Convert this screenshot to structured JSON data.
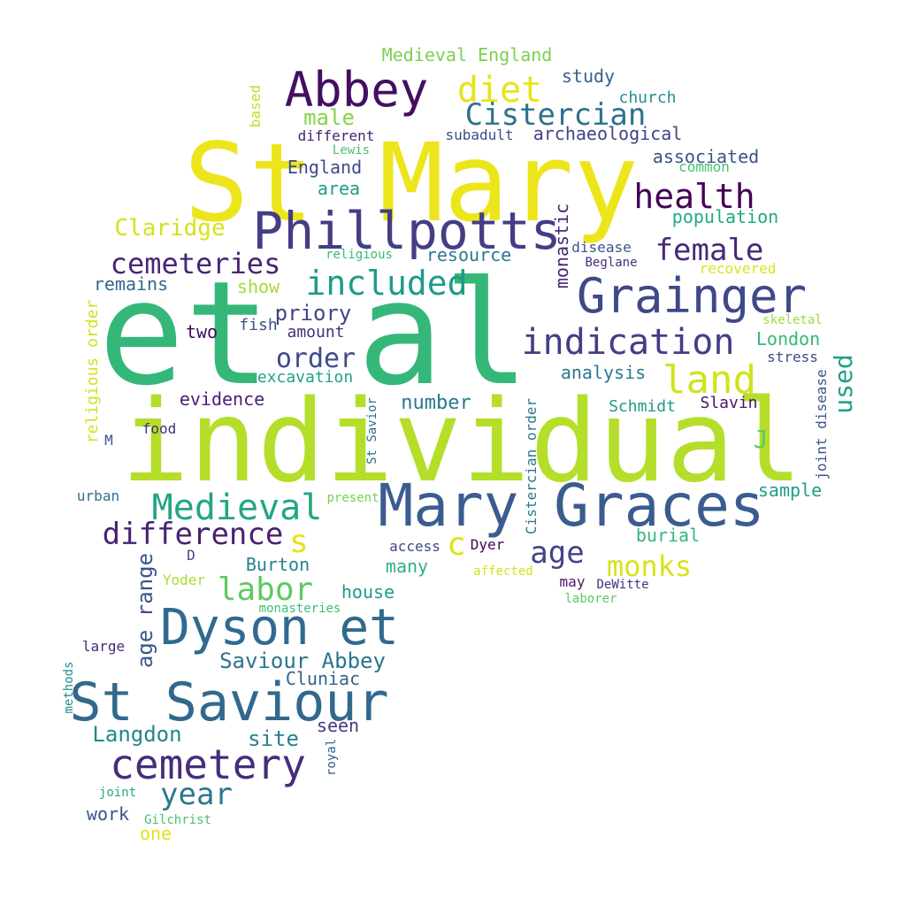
{
  "words": [
    {
      "text": "individual",
      "color": "#b5de2b"
    },
    {
      "text": "et al",
      "color": "#35b779"
    },
    {
      "text": "St Mary",
      "color": "#ece51b"
    },
    {
      "text": "Mary Graces",
      "color": "#3b5c8f"
    },
    {
      "text": "Phillpotts",
      "color": "#433e85"
    },
    {
      "text": "Dyson et",
      "color": "#306a8e"
    },
    {
      "text": "St Saviour",
      "color": "#31688e"
    },
    {
      "text": "Grainger",
      "color": "#3e4989"
    },
    {
      "text": "Abbey",
      "color": "#440f62"
    },
    {
      "text": "cemetery",
      "color": "#472d7b"
    },
    {
      "text": "indication",
      "color": "#433e85"
    },
    {
      "text": "Medieval",
      "color": "#21a685"
    },
    {
      "text": "included",
      "color": "#1f9a8a"
    },
    {
      "text": "diet",
      "color": "#e7e419"
    },
    {
      "text": "health",
      "color": "#440154"
    },
    {
      "text": "land",
      "color": "#d2e21b"
    },
    {
      "text": "difference",
      "color": "#482173"
    },
    {
      "text": "cemeteries",
      "color": "#482576"
    },
    {
      "text": "Cistercian",
      "color": "#2c728e"
    },
    {
      "text": "female",
      "color": "#482878"
    },
    {
      "text": "labor",
      "color": "#5ec962"
    },
    {
      "text": "year",
      "color": "#2a788e"
    },
    {
      "text": "monks",
      "color": "#d8e219"
    },
    {
      "text": "age",
      "color": "#414487"
    },
    {
      "text": "order",
      "color": "#3e4a89"
    },
    {
      "text": "Claridge",
      "color": "#d5e21a"
    },
    {
      "text": "used",
      "color": "#1fa188"
    },
    {
      "text": "Saviour Abbey",
      "color": "#2c738e"
    },
    {
      "text": "Langdon",
      "color": "#24868e"
    },
    {
      "text": "male",
      "color": "#84d44b"
    },
    {
      "text": "age range",
      "color": "#39568c"
    },
    {
      "text": "site",
      "color": "#27808e"
    },
    {
      "text": "priory",
      "color": "#414487"
    },
    {
      "text": "J",
      "color": "#5ec962"
    },
    {
      "text": "s",
      "color": "#e5e419"
    },
    {
      "text": "c",
      "color": "#dde318"
    },
    {
      "text": "number",
      "color": "#2a788e"
    },
    {
      "text": "evidence",
      "color": "#481f71"
    },
    {
      "text": "England",
      "color": "#3e4a89"
    },
    {
      "text": "archaeological",
      "color": "#414487"
    },
    {
      "text": "Medieval England",
      "color": "#7ad151"
    },
    {
      "text": "study",
      "color": "#355f8d"
    },
    {
      "text": "area",
      "color": "#1f9e89"
    },
    {
      "text": "population",
      "color": "#22a884"
    },
    {
      "text": "associated",
      "color": "#3a548c"
    },
    {
      "text": "house",
      "color": "#1f9a8a"
    },
    {
      "text": "Burton",
      "color": "#26828e"
    },
    {
      "text": "burial",
      "color": "#35b779"
    },
    {
      "text": "sample",
      "color": "#1f9e89"
    },
    {
      "text": "analysis",
      "color": "#2a788e"
    },
    {
      "text": "London",
      "color": "#35b779"
    },
    {
      "text": "monastic",
      "color": "#482878"
    },
    {
      "text": "resource",
      "color": "#2a788e"
    },
    {
      "text": "show",
      "color": "#a5db36"
    },
    {
      "text": "excavation",
      "color": "#1fa188"
    },
    {
      "text": "remains",
      "color": "#31688e"
    },
    {
      "text": "many",
      "color": "#2db27d"
    },
    {
      "text": "two",
      "color": "#46085c"
    },
    {
      "text": "fish",
      "color": "#3b528b"
    },
    {
      "text": "amount",
      "color": "#472f7d"
    },
    {
      "text": "Schmidt",
      "color": "#1f9a8a"
    },
    {
      "text": "Slavin",
      "color": "#481668"
    },
    {
      "text": "seen",
      "color": "#453781"
    },
    {
      "text": "Cluniac",
      "color": "#33638d"
    },
    {
      "text": "one",
      "color": "#dfe318"
    },
    {
      "text": "work",
      "color": "#3b528b"
    },
    {
      "text": "church",
      "color": "#21918c"
    },
    {
      "text": "subadult",
      "color": "#3e4c8a"
    },
    {
      "text": "based",
      "color": "#bddf26"
    },
    {
      "text": "different",
      "color": "#482173"
    },
    {
      "text": "Lewis",
      "color": "#4ac16d"
    },
    {
      "text": "common",
      "color": "#4ac16d"
    },
    {
      "text": "disease",
      "color": "#3b528b"
    },
    {
      "text": "Beglane",
      "color": "#472c7a"
    },
    {
      "text": "recovered",
      "color": "#dce319"
    },
    {
      "text": "religious",
      "color": "#37b878"
    },
    {
      "text": "skeletal",
      "color": "#a0da39"
    },
    {
      "text": "stress",
      "color": "#3e4a89"
    },
    {
      "text": "joint disease",
      "color": "#39568c"
    },
    {
      "text": "religious order",
      "color": "#d0e11c"
    },
    {
      "text": "Cistercian order",
      "color": "#2a788e"
    },
    {
      "text": "St Savior",
      "color": "#2c738e"
    },
    {
      "text": "food",
      "color": "#472d7b"
    },
    {
      "text": "M",
      "color": "#3b528b"
    },
    {
      "text": "urban",
      "color": "#2c728e"
    },
    {
      "text": "present",
      "color": "#7ad151"
    },
    {
      "text": "access",
      "color": "#3e4a89"
    },
    {
      "text": "Dyer",
      "color": "#440154"
    },
    {
      "text": "affected",
      "color": "#d5e21a"
    },
    {
      "text": "may",
      "color": "#481769"
    },
    {
      "text": "DeWitte",
      "color": "#46307e"
    },
    {
      "text": "laborer",
      "color": "#5ec962"
    },
    {
      "text": "D",
      "color": "#3e4a89"
    },
    {
      "text": "Yoder",
      "color": "#aadc32"
    },
    {
      "text": "monasteries",
      "color": "#3dbc74"
    },
    {
      "text": "large",
      "color": "#472a7a"
    },
    {
      "text": "methods",
      "color": "#21918c"
    },
    {
      "text": "royal",
      "color": "#33638d"
    },
    {
      "text": "joint",
      "color": "#22a884"
    },
    {
      "text": "Gilchrist",
      "color": "#4ac16d"
    }
  ]
}
